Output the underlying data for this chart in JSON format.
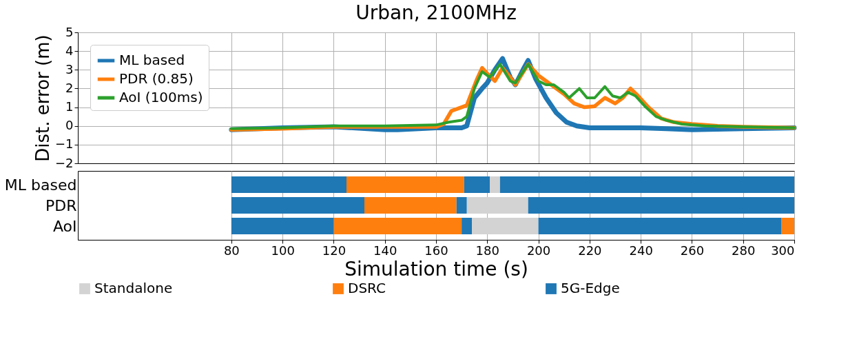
{
  "chart_data": [
    {
      "type": "line",
      "title": "Urban, 2100MHz",
      "ylabel": "Dist. error (m)",
      "xlim": [
        20,
        300
      ],
      "ylim": [
        -2,
        5
      ],
      "xticks": [
        80,
        100,
        120,
        140,
        160,
        180,
        200,
        220,
        240,
        260,
        280,
        300
      ],
      "yticks": [
        -2,
        -1,
        0,
        1,
        2,
        3,
        4,
        5
      ],
      "grid": true,
      "legend": "top left",
      "tick_labels": "y",
      "line_style": "solid",
      "series": [
        {
          "name": "ML based",
          "color": "#1f77b4",
          "x": [
            80,
            100,
            120,
            140,
            145,
            160,
            170,
            172,
            175,
            178,
            180,
            183,
            186,
            189,
            191,
            194,
            196,
            199,
            203,
            207,
            211,
            215,
            220,
            240,
            250,
            260,
            280,
            300
          ],
          "values": [
            -0.2,
            -0.1,
            -0.05,
            -0.2,
            -0.2,
            -0.1,
            -0.1,
            0,
            1.5,
            2.0,
            2.3,
            3.0,
            3.6,
            2.6,
            2.2,
            3.0,
            3.5,
            2.5,
            1.5,
            0.7,
            0.2,
            0,
            -0.1,
            -0.1,
            -0.15,
            -0.2,
            -0.15,
            -0.1
          ]
        },
        {
          "name": "PDR (0.85)",
          "color": "#ff7f0e",
          "x": [
            80,
            100,
            120,
            140,
            160,
            163,
            166,
            170,
            172,
            176,
            178,
            180,
            183,
            186,
            189,
            191,
            196,
            200,
            205,
            210,
            214,
            218,
            222,
            226,
            230,
            233,
            236,
            239,
            243,
            248,
            253,
            260,
            270,
            280,
            300
          ],
          "values": [
            -0.2,
            -0.15,
            -0.05,
            -0.05,
            -0.05,
            0.1,
            0.8,
            1.0,
            1.1,
            2.5,
            3.1,
            2.8,
            2.4,
            3.1,
            2.6,
            2.2,
            3.3,
            2.7,
            2.2,
            1.7,
            1.2,
            1.0,
            1.05,
            1.5,
            1.2,
            1.5,
            2.0,
            1.6,
            1.0,
            0.4,
            0.2,
            0.1,
            0.0,
            -0.05,
            -0.1
          ]
        },
        {
          "name": "AoI (100ms)",
          "color": "#2ca02c",
          "x": [
            80,
            100,
            120,
            140,
            160,
            165,
            170,
            172,
            175,
            178,
            181,
            185,
            189,
            191,
            196,
            200,
            203,
            206,
            210,
            212,
            216,
            219,
            222,
            226,
            229,
            232,
            235,
            238,
            242,
            246,
            250,
            256,
            265,
            280,
            300
          ],
          "values": [
            -0.15,
            -0.1,
            0,
            0,
            0.05,
            0.2,
            0.3,
            0.5,
            2.0,
            2.9,
            2.6,
            3.3,
            2.4,
            2.3,
            3.3,
            2.4,
            2.2,
            2.2,
            1.8,
            1.5,
            2.0,
            1.5,
            1.5,
            2.1,
            1.6,
            1.5,
            1.8,
            1.6,
            1.0,
            0.5,
            0.3,
            0.1,
            0.0,
            -0.05,
            -0.1
          ]
        }
      ]
    },
    {
      "type": "bar",
      "orientation": "horizontal",
      "xlabel": "Simulation time (s)",
      "categories": [
        "ML based",
        "PDR",
        "AoI"
      ],
      "xlim": [
        20,
        300
      ],
      "xticks": [
        80,
        100,
        120,
        140,
        160,
        180,
        200,
        220,
        240,
        260,
        280,
        300
      ],
      "grid": "x",
      "legend": "bottom",
      "series": [
        {
          "name": "Standalone",
          "color": "#d3d3d3",
          "base": [
            181,
            172,
            174
          ],
          "values": [
            4,
            24,
            26
          ]
        },
        {
          "name": "DSRC",
          "color": "#ff7f0e",
          "base": [
            125,
            132,
            120
          ],
          "values": [
            46,
            36,
            50
          ]
        },
        {
          "name": "5G-Edge",
          "color": "#1f77b4",
          "base": [
            80,
            80,
            80
          ],
          "values": [
            45,
            52,
            40
          ]
        },
        {
          "color": "#ff7f0e",
          "base": [
            null,
            null,
            295
          ],
          "values": [
            null,
            null,
            5
          ]
        },
        {
          "color": "#1f77b4",
          "base": [
            171,
            168,
            170
          ],
          "values": [
            10,
            4,
            4
          ]
        },
        {
          "color": "#1f77b4",
          "base": [
            185,
            196,
            200
          ],
          "values": [
            115,
            104,
            95
          ]
        }
      ]
    }
  ]
}
